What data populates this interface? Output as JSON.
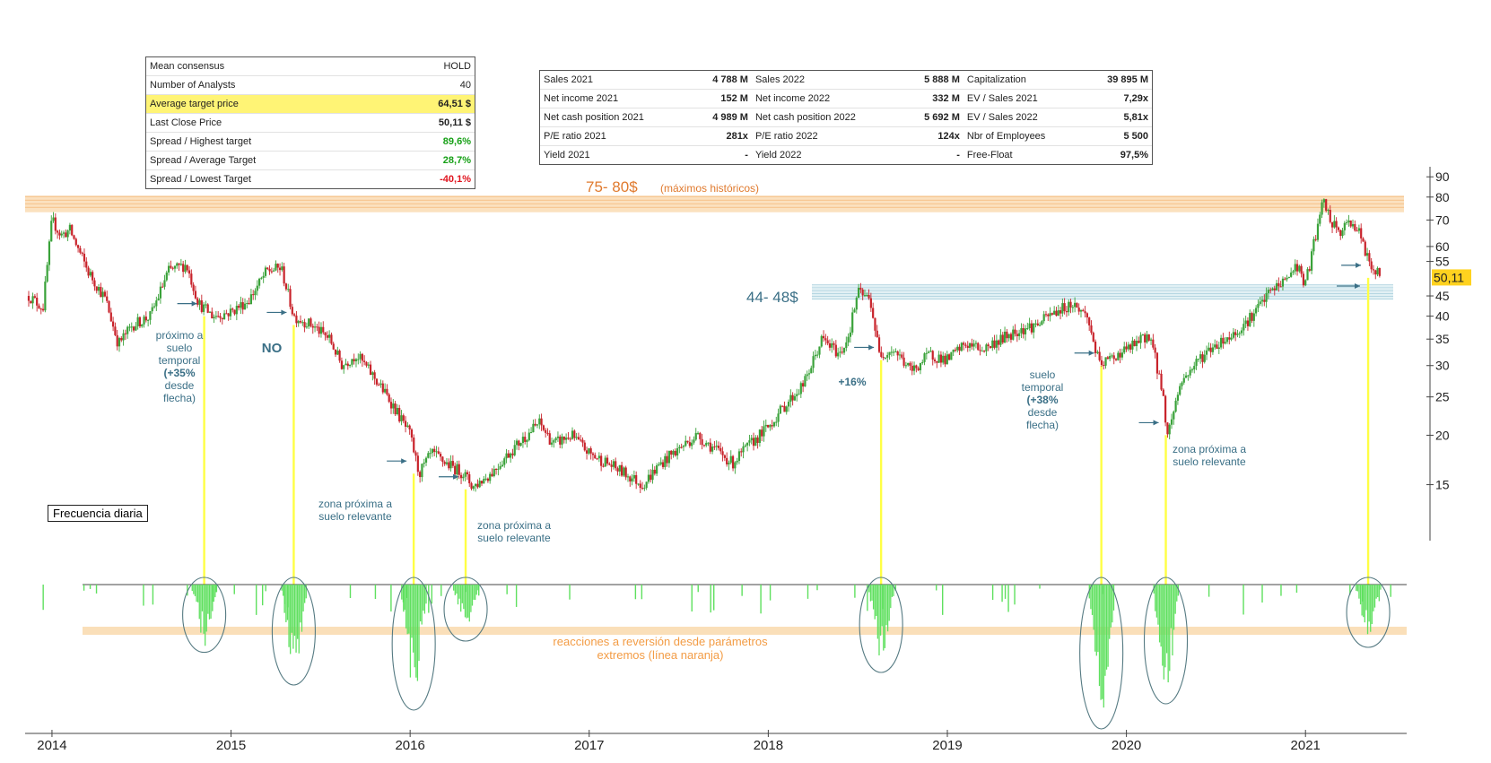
{
  "consensus": {
    "rows": [
      {
        "label": "Mean consensus",
        "value": "HOLD",
        "style": ""
      },
      {
        "label": "Number of Analysts",
        "value": "40",
        "style": ""
      },
      {
        "label": "Average target price",
        "value": "64,51 $",
        "style": "highlight"
      },
      {
        "label": "Last Close Price",
        "value": "50,11 $",
        "style": "bold"
      },
      {
        "label": "Spread / Highest target",
        "value": "89,6%",
        "style": "green"
      },
      {
        "label": "Spread / Average Target",
        "value": "28,7%",
        "style": "green"
      },
      {
        "label": "Spread / Lowest Target",
        "value": "-40,1%",
        "style": "red"
      }
    ]
  },
  "financials": {
    "rows": [
      [
        "Sales 2021",
        "4 788 M",
        "Sales 2022",
        "5 888 M",
        "Capitalization",
        "39 895 M"
      ],
      [
        "Net income 2021",
        "152 M",
        "Net income 2022",
        "332 M",
        "EV / Sales 2021",
        "7,29x"
      ],
      [
        "Net cash position 2021",
        "4 989 M",
        "Net cash position 2022",
        "5 692 M",
        "EV / Sales 2022",
        "5,81x"
      ],
      [
        "P/E ratio 2021",
        "281x",
        "P/E ratio 2022",
        "124x",
        "Nbr of Employees",
        "5 500"
      ],
      [
        "Yield 2021",
        "-",
        "Yield 2022",
        "-",
        "Free-Float",
        "97,5%"
      ]
    ]
  },
  "frequency_label": "Frecuencia diaria",
  "colors": {
    "up": "#3aa23a",
    "down": "#c8232b",
    "zone_orange": "#f7c98a",
    "zone_blue": "#a9d3e0",
    "indicator": "#5fe05f",
    "marker": "#ffff44",
    "annot": "#3a6f86",
    "orange_text": "#f39c45",
    "price_tag": "#ffd21f"
  },
  "chart_data": {
    "type": "candlestick",
    "title": "",
    "xlabel": "",
    "ylabel": "",
    "y_scale": "log",
    "ylim": [
      11,
      92
    ],
    "xlim": [
      2013.85,
      2021.55
    ],
    "x_tick_labels": [
      "2014",
      "2015",
      "2016",
      "2017",
      "2018",
      "2019",
      "2020",
      "2021"
    ],
    "x_ticks": [
      2014,
      2015,
      2016,
      2017,
      2018,
      2019,
      2020,
      2021
    ],
    "y_ticks": [
      15,
      20,
      25,
      30,
      35,
      40,
      45,
      55,
      60,
      70,
      80,
      90
    ],
    "last_price_tag": "50,11",
    "last_price": 50.11,
    "price_anchors": [
      [
        2013.87,
        45
      ],
      [
        2013.95,
        42
      ],
      [
        2014.0,
        70
      ],
      [
        2014.05,
        64
      ],
      [
        2014.1,
        66
      ],
      [
        2014.2,
        52
      ],
      [
        2014.3,
        44
      ],
      [
        2014.37,
        34
      ],
      [
        2014.45,
        38
      ],
      [
        2014.55,
        40
      ],
      [
        2014.65,
        52
      ],
      [
        2014.75,
        54
      ],
      [
        2014.82,
        43
      ],
      [
        2014.9,
        40
      ],
      [
        2015.0,
        41
      ],
      [
        2015.1,
        44
      ],
      [
        2015.2,
        52
      ],
      [
        2015.28,
        53
      ],
      [
        2015.35,
        40
      ],
      [
        2015.45,
        38
      ],
      [
        2015.55,
        35
      ],
      [
        2015.62,
        30
      ],
      [
        2015.7,
        32
      ],
      [
        2015.8,
        28
      ],
      [
        2015.9,
        24
      ],
      [
        2016.0,
        20
      ],
      [
        2016.05,
        16
      ],
      [
        2016.12,
        18
      ],
      [
        2016.2,
        17
      ],
      [
        2016.3,
        16
      ],
      [
        2016.35,
        14.8
      ],
      [
        2016.45,
        16
      ],
      [
        2016.55,
        18
      ],
      [
        2016.65,
        20
      ],
      [
        2016.72,
        21.5
      ],
      [
        2016.8,
        19
      ],
      [
        2016.9,
        20
      ],
      [
        2017.0,
        18
      ],
      [
        2017.1,
        17
      ],
      [
        2017.2,
        16
      ],
      [
        2017.3,
        15
      ],
      [
        2017.4,
        17
      ],
      [
        2017.5,
        18.5
      ],
      [
        2017.6,
        20
      ],
      [
        2017.7,
        18.5
      ],
      [
        2017.8,
        17
      ],
      [
        2017.9,
        19
      ],
      [
        2018.0,
        21
      ],
      [
        2018.1,
        24
      ],
      [
        2018.2,
        27
      ],
      [
        2018.3,
        35
      ],
      [
        2018.4,
        32
      ],
      [
        2018.45,
        36
      ],
      [
        2018.5,
        46
      ],
      [
        2018.57,
        44
      ],
      [
        2018.62,
        32
      ],
      [
        2018.7,
        33
      ],
      [
        2018.8,
        29
      ],
      [
        2018.9,
        32
      ],
      [
        2019.0,
        31
      ],
      [
        2019.1,
        34
      ],
      [
        2019.2,
        33
      ],
      [
        2019.3,
        35
      ],
      [
        2019.4,
        37
      ],
      [
        2019.5,
        38
      ],
      [
        2019.6,
        41
      ],
      [
        2019.7,
        43
      ],
      [
        2019.78,
        40
      ],
      [
        2019.85,
        30
      ],
      [
        2019.95,
        32
      ],
      [
        2020.05,
        34
      ],
      [
        2020.13,
        36
      ],
      [
        2020.2,
        26
      ],
      [
        2020.23,
        20
      ],
      [
        2020.3,
        27
      ],
      [
        2020.4,
        31
      ],
      [
        2020.5,
        34
      ],
      [
        2020.6,
        36
      ],
      [
        2020.7,
        40
      ],
      [
        2020.8,
        46
      ],
      [
        2020.9,
        50
      ],
      [
        2020.95,
        54
      ],
      [
        2021.0,
        48
      ],
      [
        2021.05,
        62
      ],
      [
        2021.1,
        78
      ],
      [
        2021.15,
        68
      ],
      [
        2021.2,
        65
      ],
      [
        2021.25,
        70
      ],
      [
        2021.3,
        65
      ],
      [
        2021.35,
        55
      ],
      [
        2021.42,
        50
      ]
    ],
    "horizontal_zones": [
      {
        "name": "historic-highs-zone",
        "from": 74,
        "to": 79,
        "label": "75- 80$",
        "sublabel": "(máximos históricos)"
      },
      {
        "name": "resistance-zone",
        "from": 44,
        "to": 48,
        "label": "44- 48$"
      }
    ],
    "signals": [
      {
        "x": 2014.85,
        "price": 40,
        "label": [
          "próximo a",
          "suelo",
          "temporal",
          "(+35%",
          "desde",
          "flecha)"
        ],
        "depth": 0.34
      },
      {
        "x": 2015.35,
        "price": 38,
        "label": [
          "NO"
        ],
        "depth": 0.6
      },
      {
        "x": 2016.02,
        "price": 16,
        "label": [
          "zona próxima a",
          "suelo relevante"
        ],
        "depth": 0.8
      },
      {
        "x": 2016.31,
        "price": 14.6,
        "label": [
          "zona próxima a",
          "suelo relevante"
        ],
        "depth": 0.25
      },
      {
        "x": 2018.63,
        "price": 31,
        "label": [
          "+16%"
        ],
        "depth": 0.5
      },
      {
        "x": 2019.86,
        "price": 30,
        "label": [
          "suelo",
          "temporal",
          "(+38%",
          "desde",
          "flecha)"
        ],
        "depth": 0.95
      },
      {
        "x": 2020.22,
        "price": 20,
        "label": [
          "zona próxima a",
          "suelo relevante"
        ],
        "depth": 0.75
      },
      {
        "x": 2021.35,
        "price": 50,
        "label": [],
        "depth": 0.3
      }
    ],
    "indicator": {
      "label": "reacciones a reversión desde parámetros extremos (línea naranja)"
    }
  }
}
